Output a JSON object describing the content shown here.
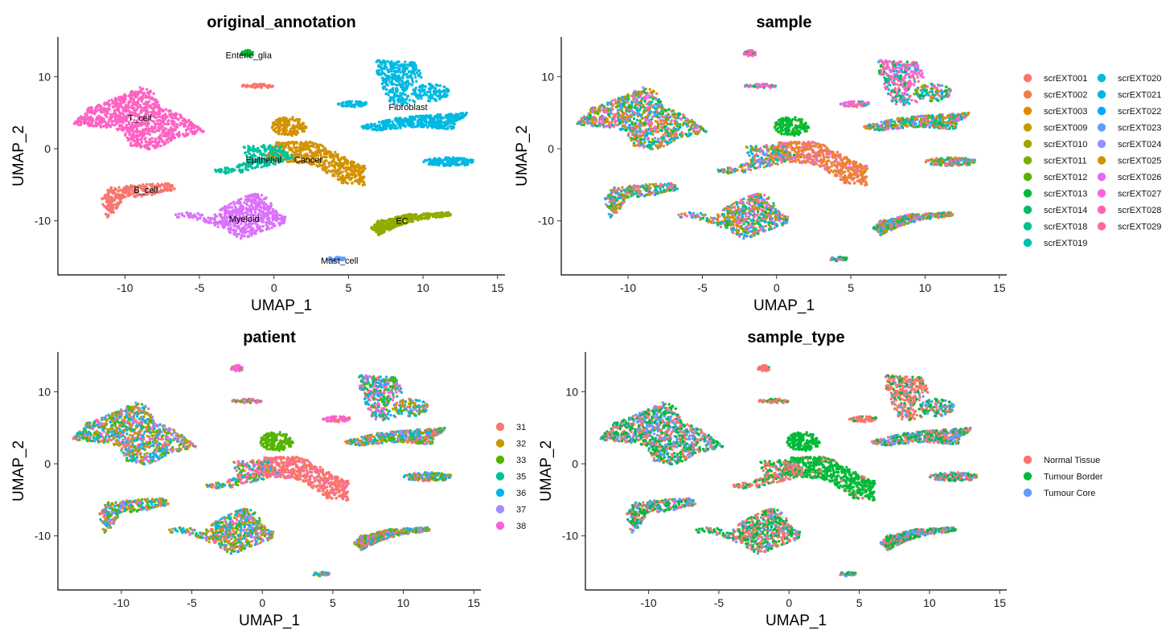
{
  "chart_data": [
    {
      "type": "scatter",
      "title": "original_annotation",
      "xlabel": "UMAP_1",
      "ylabel": "UMAP_2",
      "xlim": [
        -14.5,
        15.5
      ],
      "ylim": [
        -17.5,
        15.5
      ],
      "xticks": [
        -10,
        -5,
        0,
        5,
        10,
        15
      ],
      "yticks": [
        -10,
        0,
        10
      ],
      "xtick_labels": [
        "-10",
        "-5",
        "0",
        "5",
        "10",
        "15"
      ],
      "ytick_labels": [
        "-10",
        "0",
        "10"
      ],
      "grid": false,
      "legend": null,
      "cluster_labels": [
        {
          "text": "Enteric_glia",
          "x": -1.7,
          "y": 13.0
        },
        {
          "text": "Fibroblast",
          "x": 9.0,
          "y": 5.8
        },
        {
          "text": "T_cell",
          "x": -9.0,
          "y": 4.3
        },
        {
          "text": "Epithelial",
          "x": -0.7,
          "y": -1.5
        },
        {
          "text": "Cancer",
          "x": 2.3,
          "y": -1.5
        },
        {
          "text": "B_cell",
          "x": -8.6,
          "y": -5.7
        },
        {
          "text": "Myeloid",
          "x": -2.0,
          "y": -9.7
        },
        {
          "text": "EC",
          "x": 8.6,
          "y": -10.0
        },
        {
          "text": "Mast_cell",
          "x": 4.4,
          "y": -15.5
        }
      ]
    },
    {
      "type": "scatter",
      "title": "sample",
      "xlabel": "UMAP_1",
      "ylabel": "UMAP_2",
      "xlim": [
        -14.5,
        15.5
      ],
      "ylim": [
        -17.5,
        15.5
      ],
      "xticks": [
        -10,
        -5,
        0,
        5,
        10,
        15
      ],
      "yticks": [
        -10,
        0,
        10
      ],
      "xtick_labels": [
        "-10",
        "-5",
        "0",
        "5",
        "10",
        "15"
      ],
      "ytick_labels": [
        "-10",
        "0",
        "10"
      ],
      "grid": false,
      "legend": "right",
      "series": [
        {
          "name": "scrEXT001",
          "color": "#F8766D"
        },
        {
          "name": "scrEXT002",
          "color": "#EF7F49"
        },
        {
          "name": "scrEXT003",
          "color": "#E38900"
        },
        {
          "name": "scrEXT009",
          "color": "#C49A00"
        },
        {
          "name": "scrEXT010",
          "color": "#A3A500"
        },
        {
          "name": "scrEXT011",
          "color": "#7CAE00"
        },
        {
          "name": "scrEXT012",
          "color": "#53B400"
        },
        {
          "name": "scrEXT013",
          "color": "#00BA38"
        },
        {
          "name": "scrEXT014",
          "color": "#00BE67"
        },
        {
          "name": "scrEXT018",
          "color": "#00C08B"
        },
        {
          "name": "scrEXT019",
          "color": "#00C0AF"
        },
        {
          "name": "scrEXT020",
          "color": "#00BCD8"
        },
        {
          "name": "scrEXT021",
          "color": "#00B4EF"
        },
        {
          "name": "scrEXT022",
          "color": "#00A9FF"
        },
        {
          "name": "scrEXT023",
          "color": "#619CFF"
        },
        {
          "name": "scrEXT024",
          "color": "#9590FF"
        },
        {
          "name": "scrEXT025",
          "color": "#D39200"
        },
        {
          "name": "scrEXT026",
          "color": "#E76BF3"
        },
        {
          "name": "scrEXT027",
          "color": "#FA62DB"
        },
        {
          "name": "scrEXT028",
          "color": "#FF62BC"
        },
        {
          "name": "scrEXT029",
          "color": "#FF6C91"
        }
      ]
    },
    {
      "type": "scatter",
      "title": "patient",
      "xlabel": "UMAP_1",
      "ylabel": "UMAP_2",
      "xlim": [
        -14.5,
        15.5
      ],
      "ylim": [
        -17.5,
        15.5
      ],
      "xticks": [
        -10,
        -5,
        0,
        5,
        10,
        15
      ],
      "yticks": [
        -10,
        0,
        10
      ],
      "xtick_labels": [
        "-10",
        "-5",
        "0",
        "5",
        "10",
        "15"
      ],
      "ytick_labels": [
        "-10",
        "0",
        "10"
      ],
      "grid": false,
      "legend": "right",
      "series": [
        {
          "name": "31",
          "color": "#F8766D"
        },
        {
          "name": "32",
          "color": "#C49A00"
        },
        {
          "name": "33",
          "color": "#53B400"
        },
        {
          "name": "35",
          "color": "#00C094"
        },
        {
          "name": "36",
          "color": "#00B6EB"
        },
        {
          "name": "37",
          "color": "#A58AFF"
        },
        {
          "name": "38",
          "color": "#FB61D7"
        }
      ]
    },
    {
      "type": "scatter",
      "title": "sample_type",
      "xlabel": "UMAP_1",
      "ylabel": "UMAP_2",
      "xlim": [
        -14.5,
        15.5
      ],
      "ylim": [
        -17.5,
        15.5
      ],
      "xticks": [
        -10,
        -5,
        0,
        5,
        10,
        15
      ],
      "yticks": [
        -10,
        0,
        10
      ],
      "xtick_labels": [
        "-10",
        "-5",
        "0",
        "5",
        "10",
        "15"
      ],
      "ytick_labels": [
        "-10",
        "0",
        "10"
      ],
      "grid": false,
      "legend": "right",
      "series": [
        {
          "name": "Normal Tissue",
          "color": "#F8766D"
        },
        {
          "name": "Tumour Border",
          "color": "#00BA38"
        },
        {
          "name": "Tumour Core",
          "color": "#619CFF"
        }
      ]
    }
  ]
}
